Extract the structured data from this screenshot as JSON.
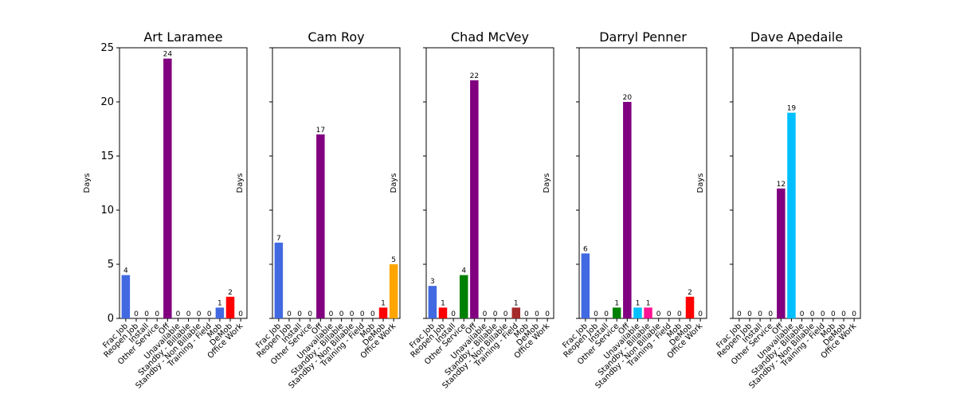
{
  "chart_data": [
    {
      "type": "bar",
      "title": "Art Laramee",
      "ylabel": "Days",
      "ylim": [
        0,
        25
      ],
      "yticks": [
        0,
        5,
        10,
        15,
        20,
        25
      ],
      "categories": [
        "Frac Job",
        "Reopen Job",
        "Install",
        "Other Service",
        "Off",
        "Unavailable",
        "Standby - Billable",
        "Standby - Non Billable",
        "Training - Field",
        "Mob",
        "DeMob",
        "Office Work"
      ],
      "values": [
        4,
        0,
        0,
        0,
        24,
        0,
        0,
        0,
        0,
        1,
        2,
        0
      ],
      "colors": [
        "#4169e1",
        "#4169e1",
        "#4169e1",
        "#4169e1",
        "#800080",
        "#00bfff",
        "#ff1493",
        "#00bfff",
        "#00bfff",
        "#4169e1",
        "#ff0000",
        "#ffa500"
      ]
    },
    {
      "type": "bar",
      "title": "Cam Roy",
      "ylabel": "Days",
      "ylim": [
        0,
        25
      ],
      "yticks": [
        0,
        5,
        10,
        15,
        20,
        25
      ],
      "categories": [
        "Frac Job",
        "Reopen Job",
        "Install",
        "Other Service",
        "Off",
        "Unavailable",
        "Standby - Billable",
        "Standby - Non Billable",
        "Training - Field",
        "Mob",
        "DeMob",
        "Office Work"
      ],
      "values": [
        7,
        0,
        0,
        0,
        17,
        0,
        0,
        0,
        0,
        0,
        1,
        5
      ],
      "colors": [
        "#4169e1",
        "#4169e1",
        "#4169e1",
        "#4169e1",
        "#800080",
        "#00bfff",
        "#ff1493",
        "#00bfff",
        "#00bfff",
        "#4169e1",
        "#ff0000",
        "#ffa500"
      ]
    },
    {
      "type": "bar",
      "title": "Chad McVey",
      "ylabel": "Days",
      "ylim": [
        0,
        25
      ],
      "yticks": [
        0,
        5,
        10,
        15,
        20,
        25
      ],
      "categories": [
        "Frac Job",
        "Reopen Job",
        "Install",
        "Other Service",
        "Off",
        "Unavailable",
        "Standby - Billable",
        "Standby - Non Billable",
        "Training - Field",
        "Mob",
        "DeMob",
        "Office Work"
      ],
      "values": [
        3,
        1,
        0,
        4,
        22,
        0,
        0,
        0,
        1,
        0,
        0,
        0
      ],
      "colors": [
        "#4169e1",
        "#ff0000",
        "#4169e1",
        "#008000",
        "#800080",
        "#00bfff",
        "#ff1493",
        "#00bfff",
        "#a52a2a",
        "#4169e1",
        "#ff0000",
        "#ffa500"
      ]
    },
    {
      "type": "bar",
      "title": "Darryl Penner",
      "ylabel": "Days",
      "ylim": [
        0,
        25
      ],
      "yticks": [
        0,
        5,
        10,
        15,
        20,
        25
      ],
      "categories": [
        "Frac Job",
        "Reopen Job",
        "Install",
        "Other Service",
        "Off",
        "Unavailable",
        "Standby - Billable",
        "Standby - Non Billable",
        "Training - Field",
        "Mob",
        "DeMob",
        "Office Work"
      ],
      "values": [
        6,
        0,
        0,
        1,
        20,
        1,
        1,
        0,
        0,
        0,
        2,
        0
      ],
      "colors": [
        "#4169e1",
        "#4169e1",
        "#4169e1",
        "#008000",
        "#800080",
        "#00bfff",
        "#ff1493",
        "#00bfff",
        "#00bfff",
        "#4169e1",
        "#ff0000",
        "#ffa500"
      ]
    },
    {
      "type": "bar",
      "title": "Dave Apedaile",
      "ylabel": "Days",
      "ylim": [
        0,
        25
      ],
      "yticks": [
        0,
        5,
        10,
        15,
        20,
        25
      ],
      "categories": [
        "Frac Job",
        "Reopen Job",
        "Install",
        "Other Service",
        "Off",
        "Unavailable",
        "Standby - Billable",
        "Standby - Non Billable",
        "Training - Field",
        "Mob",
        "DeMob",
        "Office Work"
      ],
      "values": [
        0,
        0,
        0,
        0,
        12,
        19,
        0,
        0,
        0,
        0,
        0,
        0
      ],
      "colors": [
        "#4169e1",
        "#4169e1",
        "#4169e1",
        "#4169e1",
        "#800080",
        "#00bfff",
        "#ff1493",
        "#00bfff",
        "#00bfff",
        "#4169e1",
        "#ff0000",
        "#ffa500"
      ]
    }
  ]
}
